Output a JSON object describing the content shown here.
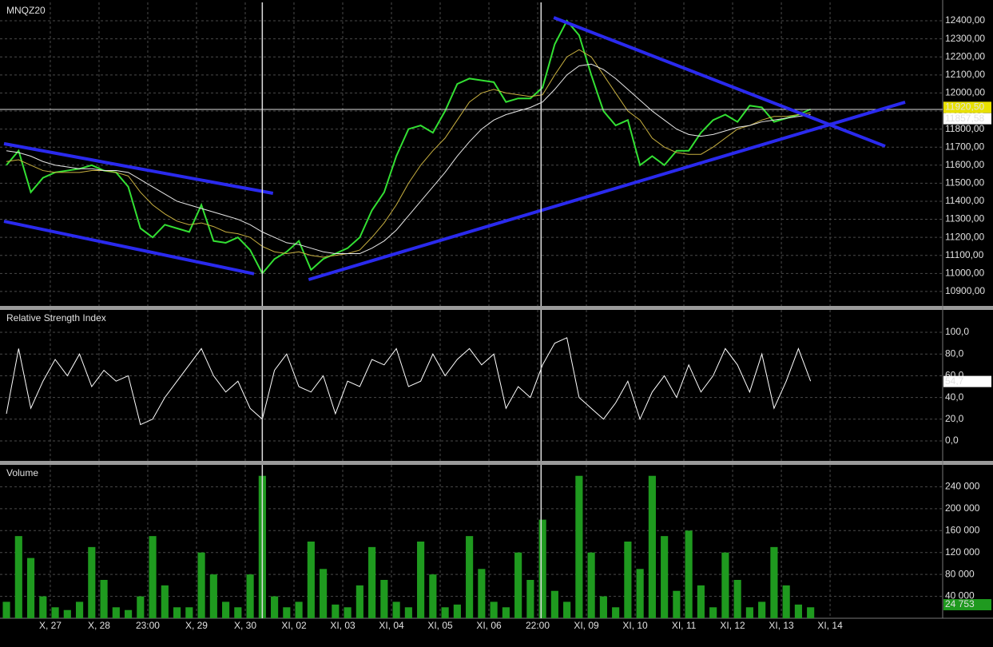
{
  "chart_data": {
    "type": "line",
    "xlim": [
      -0.95,
      18.31
    ],
    "xticks": [
      {
        "value": 0,
        "label": "X, 27"
      },
      {
        "value": 1,
        "label": "X, 28"
      },
      {
        "value": 2,
        "label": "23:00"
      },
      {
        "value": 3,
        "label": "X, 29"
      },
      {
        "value": 4,
        "label": "X, 30"
      },
      {
        "value": 5,
        "label": "XI, 02"
      },
      {
        "value": 6,
        "label": "XI, 03"
      },
      {
        "value": 7,
        "label": "XI, 04"
      },
      {
        "value": 8,
        "label": "XI, 05"
      },
      {
        "value": 9,
        "label": "XI, 06"
      },
      {
        "value": 10,
        "label": "22:00"
      },
      {
        "value": 11,
        "label": "XI, 09"
      },
      {
        "value": 12,
        "label": "XI, 10"
      },
      {
        "value": 13,
        "label": "XI, 11"
      },
      {
        "value": 14,
        "label": "XI, 12"
      },
      {
        "value": 15,
        "label": "XI, 13"
      },
      {
        "value": 16,
        "label": "XI, 14"
      }
    ],
    "x": [
      -0.9,
      -0.65,
      -0.4,
      -0.15,
      0.1,
      0.35,
      0.6,
      0.85,
      1.1,
      1.35,
      1.6,
      1.85,
      2.1,
      2.35,
      2.6,
      2.85,
      3.1,
      3.35,
      3.6,
      3.85,
      4.1,
      4.35,
      4.6,
      4.85,
      5.1,
      5.35,
      5.6,
      5.85,
      6.1,
      6.35,
      6.6,
      6.85,
      7.1,
      7.35,
      7.6,
      7.85,
      8.1,
      8.35,
      8.6,
      8.85,
      9.1,
      9.35,
      9.6,
      9.85,
      10.1,
      10.35,
      10.6,
      10.85,
      11.1,
      11.35,
      11.6,
      11.85,
      12.1,
      12.35,
      12.6,
      12.85,
      13.1,
      13.35,
      13.6,
      13.85,
      14.1,
      14.35,
      14.6,
      14.85,
      15.1,
      15.35,
      15.6
    ],
    "vlines": [
      4.35,
      10.07
    ],
    "panes": [
      {
        "title": "MNQZ20",
        "type": "line",
        "ylim": [
          10820,
          12502
        ],
        "yticks": [
          {
            "value": 10900,
            "label": "10900,00"
          },
          {
            "value": 11000,
            "label": "11000,00"
          },
          {
            "value": 11100,
            "label": "11100,00"
          },
          {
            "value": 11200,
            "label": "11200,00"
          },
          {
            "value": 11300,
            "label": "11300,00"
          },
          {
            "value": 11400,
            "label": "11400,00"
          },
          {
            "value": 11500,
            "label": "11500,00"
          },
          {
            "value": 11600,
            "label": "11600,00"
          },
          {
            "value": 11700,
            "label": "11700,00"
          },
          {
            "value": 11800,
            "label": "11800,00"
          },
          {
            "value": 11900,
            "label": "11900,00"
          },
          {
            "value": 12000,
            "label": "12000,00"
          },
          {
            "value": 12100,
            "label": "12100,00"
          },
          {
            "value": 12200,
            "label": "12200,00"
          },
          {
            "value": 12300,
            "label": "12300,00"
          },
          {
            "value": 12400,
            "label": "12400,00"
          }
        ],
        "series": [
          {
            "color": "#33e033",
            "width": 2,
            "values": [
              11600,
              11680,
              11450,
              11530,
              11560,
              11570,
              11580,
              11600,
              11570,
              11560,
              11480,
              11250,
              11200,
              11270,
              11250,
              11230,
              11380,
              11180,
              11170,
              11200,
              11130,
              11000,
              11080,
              11120,
              11180,
              11020,
              11080,
              11110,
              11140,
              11200,
              11350,
              11450,
              11650,
              11800,
              11820,
              11780,
              11900,
              12050,
              12080,
              12070,
              12060,
              11950,
              11970,
              11970,
              12030,
              12270,
              12400,
              12320,
              12100,
              11900,
              11820,
              11850,
              11600,
              11650,
              11600,
              11680,
              11680,
              11780,
              11850,
              11880,
              11840,
              11930,
              11920,
              11840,
              11860,
              11880,
              11910
            ]
          },
          {
            "color": "#c8b040",
            "width": 1,
            "values": [
              11620,
              11630,
              11600,
              11570,
              11560,
              11560,
              11560,
              11570,
              11570,
              11560,
              11540,
              11450,
              11380,
              11330,
              11290,
              11270,
              11280,
              11260,
              11230,
              11220,
              11200,
              11150,
              11120,
              11110,
              11120,
              11100,
              11090,
              11100,
              11110,
              11130,
              11200,
              11280,
              11380,
              11500,
              11600,
              11680,
              11750,
              11850,
              11950,
              12000,
              12020,
              12000,
              11990,
              11980,
              11990,
              12100,
              12200,
              12240,
              12200,
              12100,
              12000,
              11900,
              11850,
              11750,
              11700,
              11670,
              11660,
              11660,
              11700,
              11750,
              11800,
              11820,
              11850,
              11870,
              11870,
              11880,
              11890
            ]
          },
          {
            "color": "#e8e8e8",
            "width": 1,
            "values": [
              11680,
              11670,
              11650,
              11620,
              11600,
              11590,
              11580,
              11580,
              11570,
              11570,
              11560,
              11520,
              11480,
              11440,
              11400,
              11380,
              11360,
              11340,
              11320,
              11300,
              11270,
              11230,
              11200,
              11170,
              11160,
              11140,
              11120,
              11110,
              11110,
              11110,
              11140,
              11180,
              11240,
              11320,
              11400,
              11480,
              11560,
              11650,
              11730,
              11800,
              11850,
              11880,
              11900,
              11920,
              11950,
              12020,
              12100,
              12150,
              12160,
              12130,
              12080,
              12020,
              11960,
              11900,
              11850,
              11800,
              11770,
              11760,
              11770,
              11790,
              11810,
              11820,
              11840,
              11850,
              11860,
              11870,
              11880
            ]
          }
        ],
        "hline": 11909,
        "trendlines": [
          {
            "color": "#2a2aee",
            "x": [
              -0.95,
              4.57
            ],
            "y": [
              11719,
              11444
            ]
          },
          {
            "color": "#2a2aee",
            "x": [
              -0.95,
              4.18
            ],
            "y": [
              11289,
              10998
            ]
          },
          {
            "color": "#2a2aee",
            "x": [
              5.3,
              17.54
            ],
            "y": [
              10966,
              11949
            ]
          },
          {
            "color": "#2a2aee",
            "x": [
              10.33,
              17.13
            ],
            "y": [
              12418,
              11705
            ]
          }
        ],
        "last_labels": [
          {
            "value": 11920.5,
            "label": "11920,50",
            "color": "#e8e000",
            "text_color": "#000"
          },
          {
            "value": 11857.58,
            "label": "11857,58",
            "color": "#ffffff",
            "text_color": "#000"
          }
        ]
      },
      {
        "title": "Relative Strength Index",
        "type": "line",
        "ylim": [
          -18.4,
          120.6
        ],
        "yticks": [
          {
            "value": 0,
            "label": "0,0"
          },
          {
            "value": 20,
            "label": "20,0"
          },
          {
            "value": 40,
            "label": "40,0"
          },
          {
            "value": 60,
            "label": "60,0"
          },
          {
            "value": 80,
            "label": "80,0"
          },
          {
            "value": 100,
            "label": "100,0"
          }
        ],
        "series": [
          {
            "color": "#ffffff",
            "width": 1,
            "values": [
              25,
              85,
              30,
              55,
              75,
              60,
              80,
              50,
              65,
              55,
              60,
              15,
              20,
              40,
              55,
              70,
              85,
              60,
              45,
              55,
              30,
              20,
              65,
              80,
              50,
              45,
              60,
              25,
              55,
              50,
              75,
              70,
              85,
              50,
              55,
              80,
              60,
              75,
              85,
              70,
              80,
              30,
              50,
              40,
              70,
              90,
              95,
              40,
              30,
              20,
              35,
              55,
              20,
              45,
              60,
              40,
              70,
              45,
              60,
              85,
              70,
              45,
              80,
              30,
              55,
              85,
              55
            ]
          }
        ],
        "last_labels": [
          {
            "value": 54.7,
            "label": "54,7",
            "color": "#ffffff",
            "text_color": "#000"
          }
        ]
      },
      {
        "title": "Volume",
        "type": "bar",
        "ylim": [
          0,
          280000
        ],
        "yticks": [
          {
            "value": 40000,
            "label": "40 000"
          },
          {
            "value": 80000,
            "label": "80 000"
          },
          {
            "value": 120000,
            "label": "120 000"
          },
          {
            "value": 160000,
            "label": "160 000"
          },
          {
            "value": 200000,
            "label": "200 000"
          },
          {
            "value": 240000,
            "label": "240 000"
          }
        ],
        "series": [
          {
            "color": "#1f9a1f",
            "values": [
              30000,
              150000,
              110000,
              40000,
              20000,
              15000,
              30000,
              130000,
              70000,
              20000,
              15000,
              40000,
              150000,
              60000,
              20000,
              20000,
              120000,
              80000,
              30000,
              20000,
              80000,
              260000,
              40000,
              20000,
              30000,
              140000,
              90000,
              25000,
              20000,
              60000,
              130000,
              70000,
              30000,
              20000,
              140000,
              80000,
              20000,
              25000,
              150000,
              90000,
              30000,
              20000,
              120000,
              70000,
              180000,
              50000,
              30000,
              260000,
              120000,
              40000,
              20000,
              140000,
              90000,
              260000,
              150000,
              50000,
              160000,
              60000,
              20000,
              120000,
              70000,
              20000,
              30000,
              130000,
              60000,
              25000,
              20000
            ]
          }
        ],
        "last_labels": [
          {
            "value": 24753,
            "label": "24 753",
            "color": "#1f9a1f",
            "text_color": "#cfe"
          }
        ]
      }
    ]
  }
}
